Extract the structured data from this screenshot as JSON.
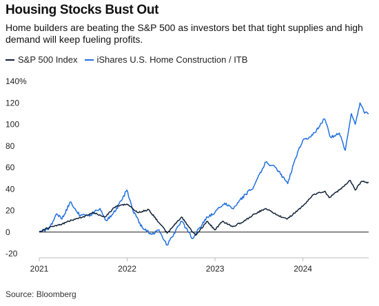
{
  "title": "Housing Stocks Bust Out",
  "subtitle": "Home builders are beating the S&P 500 as investors bet that tight supplies and high demand will keep fueling profits.",
  "source": "Source: Bloomberg",
  "colors": {
    "sp500": "#0f2137",
    "itb": "#1f6fe0",
    "zero_line": "#1a1a1a",
    "grid": "#e3e3e3"
  },
  "chart_data": {
    "type": "line",
    "y_unit": "%",
    "ylim": [
      -20,
      140
    ],
    "y_ticks": [
      {
        "value": 140,
        "label": "140%"
      },
      {
        "value": 120,
        "label": "120"
      },
      {
        "value": 100,
        "label": "100"
      },
      {
        "value": 80,
        "label": "80"
      },
      {
        "value": 60,
        "label": "60"
      },
      {
        "value": 40,
        "label": "40"
      },
      {
        "value": 20,
        "label": "20"
      },
      {
        "value": 0,
        "label": "0"
      },
      {
        "value": -20,
        "label": "-20"
      }
    ],
    "x_ticks": [
      "2021",
      "2022",
      "2023",
      "2024"
    ],
    "x_range": [
      "2021-01-01",
      "2024-09-30"
    ],
    "grid": false,
    "legend_position": "top-left",
    "series": [
      {
        "name": "S&P 500 Index",
        "color_key": "sp500",
        "points": [
          [
            "2021-01-01",
            0
          ],
          [
            "2021-02-15",
            5
          ],
          [
            "2021-03-31",
            7
          ],
          [
            "2021-05-15",
            11
          ],
          [
            "2021-06-30",
            14
          ],
          [
            "2021-08-15",
            18
          ],
          [
            "2021-09-30",
            14
          ],
          [
            "2021-11-15",
            24
          ],
          [
            "2021-12-31",
            26
          ],
          [
            "2022-02-15",
            18
          ],
          [
            "2022-03-31",
            21
          ],
          [
            "2022-05-20",
            7
          ],
          [
            "2022-06-16",
            -1
          ],
          [
            "2022-08-15",
            14
          ],
          [
            "2022-09-30",
            0
          ],
          [
            "2022-10-12",
            -3
          ],
          [
            "2022-11-30",
            10
          ],
          [
            "2022-12-31",
            2
          ],
          [
            "2023-02-01",
            10
          ],
          [
            "2023-03-15",
            5
          ],
          [
            "2023-05-01",
            10
          ],
          [
            "2023-06-15",
            17
          ],
          [
            "2023-07-31",
            22
          ],
          [
            "2023-09-15",
            16
          ],
          [
            "2023-10-27",
            12
          ],
          [
            "2023-12-31",
            24
          ],
          [
            "2024-02-15",
            35
          ],
          [
            "2024-03-31",
            38
          ],
          [
            "2024-04-19",
            32
          ],
          [
            "2024-05-31",
            39
          ],
          [
            "2024-07-16",
            48
          ],
          [
            "2024-08-05",
            39
          ],
          [
            "2024-08-31",
            47
          ],
          [
            "2024-09-30",
            46
          ]
        ]
      },
      {
        "name": "iShares U.S. Home Construction / ITB",
        "color_key": "itb",
        "points": [
          [
            "2021-01-01",
            0
          ],
          [
            "2021-02-10",
            3
          ],
          [
            "2021-03-15",
            17
          ],
          [
            "2021-04-05",
            12
          ],
          [
            "2021-05-10",
            28
          ],
          [
            "2021-06-20",
            15
          ],
          [
            "2021-08-01",
            16
          ],
          [
            "2021-09-10",
            22
          ],
          [
            "2021-10-05",
            11
          ],
          [
            "2021-11-15",
            20
          ],
          [
            "2021-12-31",
            39
          ],
          [
            "2022-01-25",
            20
          ],
          [
            "2022-03-05",
            4
          ],
          [
            "2022-04-15",
            -2
          ],
          [
            "2022-05-10",
            2
          ],
          [
            "2022-06-16",
            -12
          ],
          [
            "2022-07-15",
            -1
          ],
          [
            "2022-08-15",
            10
          ],
          [
            "2022-09-30",
            -6
          ],
          [
            "2022-10-25",
            3
          ],
          [
            "2022-11-30",
            14
          ],
          [
            "2022-12-31",
            18
          ],
          [
            "2023-02-10",
            27
          ],
          [
            "2023-03-15",
            22
          ],
          [
            "2023-04-15",
            30
          ],
          [
            "2023-06-10",
            42
          ],
          [
            "2023-07-31",
            65
          ],
          [
            "2023-09-10",
            60
          ],
          [
            "2023-10-30",
            45
          ],
          [
            "2023-11-30",
            68
          ],
          [
            "2023-12-31",
            85
          ],
          [
            "2024-02-10",
            90
          ],
          [
            "2024-03-31",
            105
          ],
          [
            "2024-04-25",
            88
          ],
          [
            "2024-05-31",
            92
          ],
          [
            "2024-06-25",
            76
          ],
          [
            "2024-07-20",
            110
          ],
          [
            "2024-08-05",
            100
          ],
          [
            "2024-08-25",
            120
          ],
          [
            "2024-09-10",
            112
          ],
          [
            "2024-09-30",
            110
          ]
        ]
      }
    ]
  }
}
